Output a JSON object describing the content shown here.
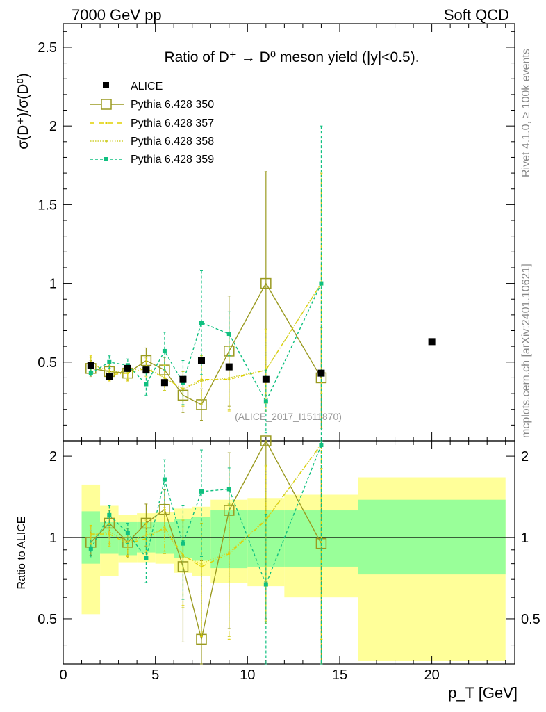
{
  "header": {
    "left": "7000 GeV pp",
    "right": "Soft QCD"
  },
  "side": {
    "rivet": "Rivet 4.1.0, ≥ 100k events",
    "mcplots": "mcplots.cern.ch [arXiv:2401.10621]"
  },
  "labels": {
    "title": "Ratio of D⁺ → D⁰ meson yield (|y|<0.5).",
    "ylabel_top": "σ(D⁺)/σ(D⁰)",
    "ylabel_bottom": "Ratio to ALICE",
    "xlabel": "p_T [GeV]",
    "watermark": "(ALICE_2017_I1511870)"
  },
  "colors": {
    "alice": "#000000",
    "p350": "#9a9a20",
    "p357": "#e0d000",
    "p358": "#d0d030",
    "p359": "#10c080",
    "band_inner": "#99ff99",
    "band_outer": "#ffff99"
  },
  "chart_data": {
    "type": "scatter",
    "title": "Ratio of D+ -> D0 meson yield (|y|<0.5).",
    "xlabel": "p_T [GeV]",
    "ylabel": "sigma(D+)/sigma(D0)",
    "xlim": [
      0,
      24.5
    ],
    "ylim": [
      0,
      2.65
    ],
    "ratio_ylim": [
      0.34,
      2.28
    ],
    "x_ticks": [
      0,
      5,
      10,
      15,
      20
    ],
    "y_ticks": [
      0.5,
      1,
      1.5,
      2,
      2.5
    ],
    "ratio_y_ticks": [
      0.5,
      1,
      2
    ],
    "bins": [
      [
        1,
        2
      ],
      [
        2,
        3
      ],
      [
        3,
        4
      ],
      [
        4,
        5
      ],
      [
        5,
        6
      ],
      [
        6,
        7
      ],
      [
        7,
        8
      ],
      [
        8,
        10
      ],
      [
        10,
        12
      ],
      [
        12,
        16
      ],
      [
        16,
        24
      ]
    ],
    "series": [
      {
        "name": "ALICE",
        "x": [
          1.5,
          2.5,
          3.5,
          4.5,
          5.5,
          6.5,
          7.5,
          9,
          11,
          14,
          20
        ],
        "y": [
          0.48,
          0.41,
          0.46,
          0.45,
          0.37,
          0.39,
          0.51,
          0.47,
          0.39,
          0.43,
          0.63
        ]
      },
      {
        "name": "Pythia 6.428 350",
        "x": [
          1.5,
          2.5,
          3.5,
          4.5,
          5.5,
          6.5,
          7.5,
          9,
          11,
          14
        ],
        "y": [
          0.46,
          0.44,
          0.43,
          0.51,
          0.45,
          0.29,
          0.23,
          0.57,
          1.0,
          0.4
        ],
        "err": [
          0.05,
          0.05,
          0.05,
          0.08,
          0.08,
          0.11,
          0.1,
          0.35,
          0.71,
          0.32
        ]
      },
      {
        "name": "Pythia 6.428 357",
        "x": [
          1.5,
          2.5,
          3.5,
          4.5,
          5.5,
          6.5,
          7.5,
          9,
          11,
          14
        ],
        "y": [
          0.5,
          0.42,
          0.43,
          0.46,
          0.4,
          0.33,
          0.39,
          0.39,
          0.45,
          1.0
        ],
        "err": [
          0.04,
          0.04,
          0.05,
          0.06,
          0.08,
          0.11,
          0.15,
          0.2,
          0.26,
          0.7
        ]
      },
      {
        "name": "Pythia 6.428 358",
        "x": [
          1.5,
          2.5,
          3.5,
          4.5,
          5.5,
          6.5,
          7.5,
          9,
          11,
          14
        ],
        "y": [
          0.49,
          0.44,
          0.44,
          0.47,
          0.4,
          0.33,
          0.38,
          0.4,
          0.45,
          1.0
        ],
        "err": [
          0.04,
          0.04,
          0.05,
          0.06,
          0.08,
          0.11,
          0.15,
          0.2,
          0.26,
          0.7
        ]
      },
      {
        "name": "Pythia 6.428 359",
        "x": [
          1.5,
          2.5,
          3.5,
          4.5,
          5.5,
          6.5,
          7.5,
          9,
          11,
          14
        ],
        "y": [
          0.43,
          0.5,
          0.48,
          0.36,
          0.57,
          0.37,
          0.75,
          0.68,
          0.25,
          1.0
        ],
        "err": [
          0.03,
          0.04,
          0.04,
          0.07,
          0.12,
          0.14,
          0.33,
          0.14,
          0.2,
          1.0
        ]
      }
    ],
    "ratio_series": [
      {
        "name": "Pythia 6.428 350",
        "y": [
          0.96,
          1.13,
          0.96,
          1.13,
          1.27,
          0.78,
          0.42,
          1.26,
          2.4,
          0.95
        ],
        "err": [
          0.1,
          0.13,
          0.12,
          0.2,
          0.23,
          0.37,
          0.4,
          0.8,
          1.9,
          0.85
        ]
      },
      {
        "name": "Pythia 6.428 357",
        "y": [
          1.03,
          1.03,
          0.95,
          0.99,
          1.09,
          0.86,
          0.78,
          0.87,
          1.16,
          2.22
        ],
        "err": [
          0.08,
          0.1,
          0.1,
          0.14,
          0.2,
          0.3,
          0.35,
          0.45,
          0.68,
          1.8
        ]
      },
      {
        "name": "Pythia 6.428 358",
        "y": [
          1.02,
          1.05,
          0.96,
          1.02,
          1.07,
          0.85,
          0.8,
          0.88,
          1.17,
          2.2
        ],
        "err": [
          0.08,
          0.1,
          0.1,
          0.14,
          0.2,
          0.3,
          0.35,
          0.45,
          0.68,
          1.8
        ]
      },
      {
        "name": "Pythia 6.428 359",
        "y": [
          0.91,
          1.21,
          1.04,
          0.84,
          1.64,
          0.95,
          1.48,
          1.51,
          0.67,
          2.2
        ],
        "err": [
          0.07,
          0.1,
          0.09,
          0.16,
          0.3,
          0.36,
          0.63,
          0.3,
          0.55,
          2.0
        ]
      }
    ],
    "band_inner": [
      [
        0.8,
        1.25
      ],
      [
        0.87,
        1.14
      ],
      [
        0.86,
        1.14
      ],
      [
        0.88,
        1.14
      ],
      [
        0.87,
        1.14
      ],
      [
        0.84,
        1.17
      ],
      [
        0.82,
        1.19
      ],
      [
        0.77,
        1.26
      ],
      [
        0.78,
        1.26
      ],
      [
        0.78,
        1.26
      ],
      [
        0.73,
        1.38
      ]
    ],
    "band_outer": [
      [
        0.52,
        1.57
      ],
      [
        0.72,
        1.31
      ],
      [
        0.81,
        1.21
      ],
      [
        0.81,
        1.23
      ],
      [
        0.8,
        1.24
      ],
      [
        0.74,
        1.28
      ],
      [
        0.72,
        1.3
      ],
      [
        0.68,
        1.38
      ],
      [
        0.66,
        1.4
      ],
      [
        0.6,
        1.44
      ],
      [
        0.35,
        1.67
      ]
    ]
  }
}
